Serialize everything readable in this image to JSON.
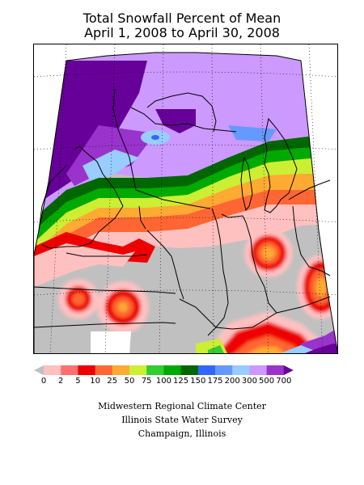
{
  "title": {
    "line1": "Total Snowfall Percent of Mean",
    "line2": "April 1, 2008 to April 30, 2008"
  },
  "legend": {
    "labels": [
      "0",
      "2",
      "5",
      "10",
      "25",
      "50",
      "75",
      "100",
      "125",
      "150",
      "175",
      "200",
      "300",
      "500",
      "700"
    ],
    "colors": [
      "#c0c0c0",
      "#ffc0c0",
      "#ff7070",
      "#ee0000",
      "#ff6633",
      "#ffaa33",
      "#ccee33",
      "#33cc33",
      "#00aa00",
      "#006600",
      "#3366ff",
      "#6699ff",
      "#99ccff",
      "#cc99ff",
      "#9933cc",
      "#660099"
    ]
  },
  "credits": {
    "line1": "Midwestern Regional Climate Center",
    "line2": "Illinois State Water Survey",
    "line3": "Champaign, Illinois"
  }
}
